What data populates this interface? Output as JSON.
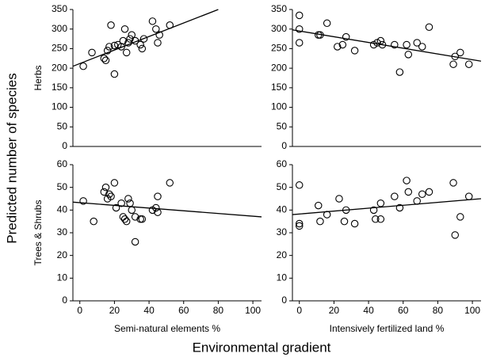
{
  "figure": {
    "ylabel": "Predicted number of species",
    "xlabel": "Environmental gradient"
  },
  "chart_data": [
    {
      "type": "scatter",
      "ylabel": "Herbs",
      "color": "#000000",
      "x": [
        2,
        7,
        14,
        15,
        16,
        17,
        18,
        20,
        20,
        22,
        24,
        25,
        26,
        27,
        28,
        29,
        30,
        32,
        35,
        36,
        37,
        42,
        44,
        45,
        46,
        52
      ],
      "values": [
        205,
        240,
        225,
        220,
        245,
        255,
        310,
        185,
        258,
        260,
        255,
        270,
        300,
        240,
        265,
        275,
        285,
        270,
        260,
        250,
        275,
        320,
        300,
        265,
        285,
        310
      ],
      "trend": {
        "x": [
          -4,
          80
        ],
        "y": [
          205,
          350
        ]
      },
      "xlim": [
        -4,
        105
      ],
      "ylim": [
        0,
        350
      ],
      "yticks": [
        0,
        50,
        100,
        150,
        200,
        250,
        300,
        350
      ]
    },
    {
      "type": "scatter",
      "color": "#000000",
      "x": [
        0,
        0,
        0,
        11,
        12,
        16,
        22,
        25,
        27,
        32,
        43,
        45,
        47,
        48,
        55,
        58,
        62,
        63,
        68,
        71,
        75,
        89,
        90,
        93,
        98
      ],
      "values": [
        335,
        300,
        265,
        285,
        285,
        315,
        255,
        260,
        280,
        245,
        260,
        265,
        270,
        260,
        260,
        190,
        260,
        235,
        265,
        255,
        305,
        210,
        230,
        240,
        210
      ],
      "trend": {
        "x": [
          -4,
          105
        ],
        "y": [
          298,
          218
        ]
      },
      "xlim": [
        -4,
        105
      ],
      "ylim": [
        0,
        350
      ],
      "yticks": [
        0,
        50,
        100,
        150,
        200,
        250,
        300,
        350
      ]
    },
    {
      "type": "scatter",
      "ylabel": "Trees & Shrubs",
      "xlabel": "Semi-natural elements %",
      "color": "#000000",
      "x": [
        2,
        8,
        14,
        15,
        16,
        17,
        18,
        20,
        21,
        24,
        25,
        26,
        27,
        28,
        29,
        30,
        32,
        32,
        35,
        36,
        42,
        44,
        45,
        45,
        52
      ],
      "values": [
        44,
        35,
        48,
        50,
        45,
        47,
        46,
        52,
        41,
        43,
        37,
        36,
        35,
        45,
        43,
        40,
        26,
        37,
        36,
        36,
        40,
        41,
        39,
        46,
        52
      ],
      "trend": {
        "x": [
          -4,
          105
        ],
        "y": [
          43.5,
          37
        ]
      },
      "xlim": [
        -4,
        105
      ],
      "ylim": [
        0,
        60
      ],
      "yticks": [
        0,
        10,
        20,
        30,
        40,
        50,
        60
      ],
      "xticks": [
        0,
        20,
        40,
        60,
        80,
        100
      ]
    },
    {
      "type": "scatter",
      "xlabel": "Intensively fertilized land %",
      "color": "#000000",
      "x": [
        0,
        0,
        0,
        11,
        12,
        16,
        23,
        26,
        27,
        32,
        43,
        44,
        47,
        47,
        55,
        58,
        62,
        63,
        68,
        71,
        75,
        89,
        90,
        93,
        98
      ],
      "values": [
        51,
        33,
        34,
        42,
        35,
        38,
        45,
        35,
        40,
        34,
        40,
        36,
        43,
        36,
        46,
        41,
        53,
        48,
        44,
        47,
        48,
        52,
        29,
        37,
        46
      ],
      "trend": {
        "x": [
          -4,
          105
        ],
        "y": [
          38,
          45
        ]
      },
      "xlim": [
        -4,
        105
      ],
      "ylim": [
        0,
        60
      ],
      "yticks": [
        0,
        10,
        20,
        30,
        40,
        50,
        60
      ],
      "xticks": [
        0,
        20,
        40,
        60,
        80,
        100
      ]
    }
  ]
}
